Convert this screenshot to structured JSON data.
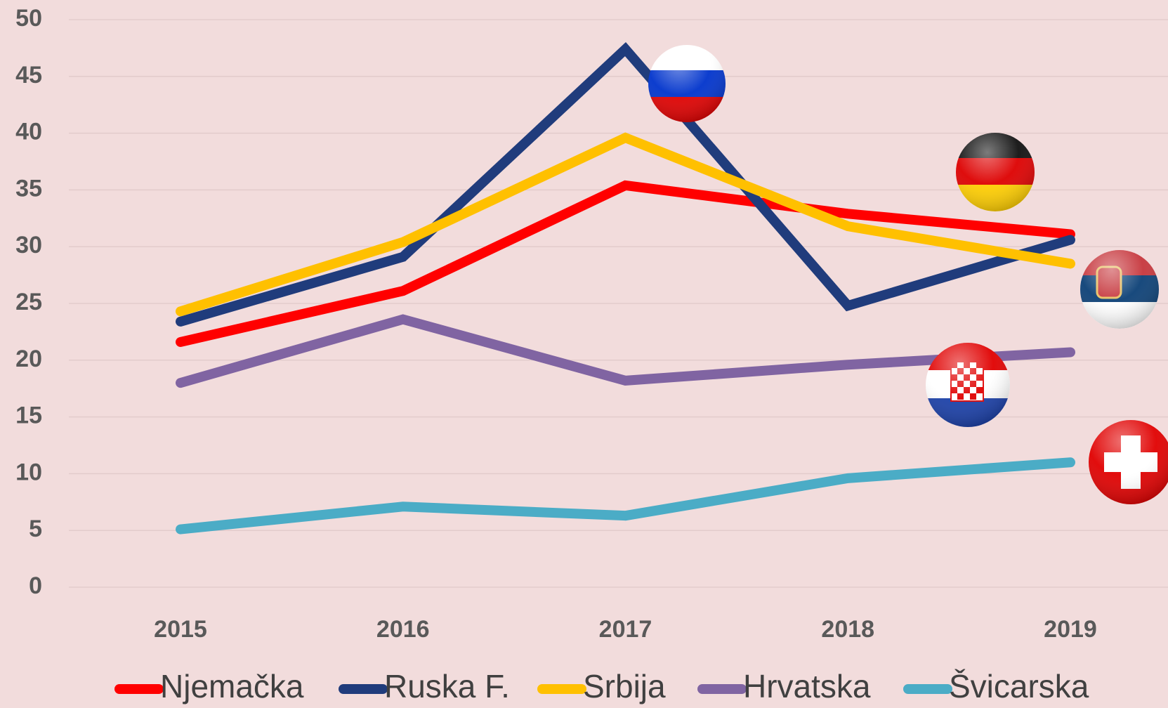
{
  "chart_data": {
    "type": "line",
    "x": [
      2015,
      2016,
      2017,
      2018,
      2019
    ],
    "ylim": [
      0,
      50
    ],
    "yticks": [
      0,
      5,
      10,
      15,
      20,
      25,
      30,
      35,
      40,
      45,
      50
    ],
    "grid": true,
    "legend": "bottom",
    "series": [
      {
        "name": "Njemačka",
        "color": "#ff0000",
        "values": [
          21.6,
          26.1,
          35.4,
          32.9,
          31.1
        ]
      },
      {
        "name": "Ruska F.",
        "color": "#203c7c",
        "values": [
          23.4,
          29.1,
          47.4,
          24.8,
          30.6
        ]
      },
      {
        "name": "Srbija",
        "color": "#ffc000",
        "values": [
          24.3,
          30.4,
          39.6,
          31.8,
          28.5
        ]
      },
      {
        "name": "Hrvatska",
        "color": "#8064a2",
        "values": [
          18.0,
          23.6,
          18.2,
          19.6,
          20.7
        ]
      },
      {
        "name": "Švicarska",
        "color": "#4bacc6",
        "values": [
          5.1,
          7.1,
          6.3,
          9.6,
          11.0
        ]
      }
    ]
  }
}
